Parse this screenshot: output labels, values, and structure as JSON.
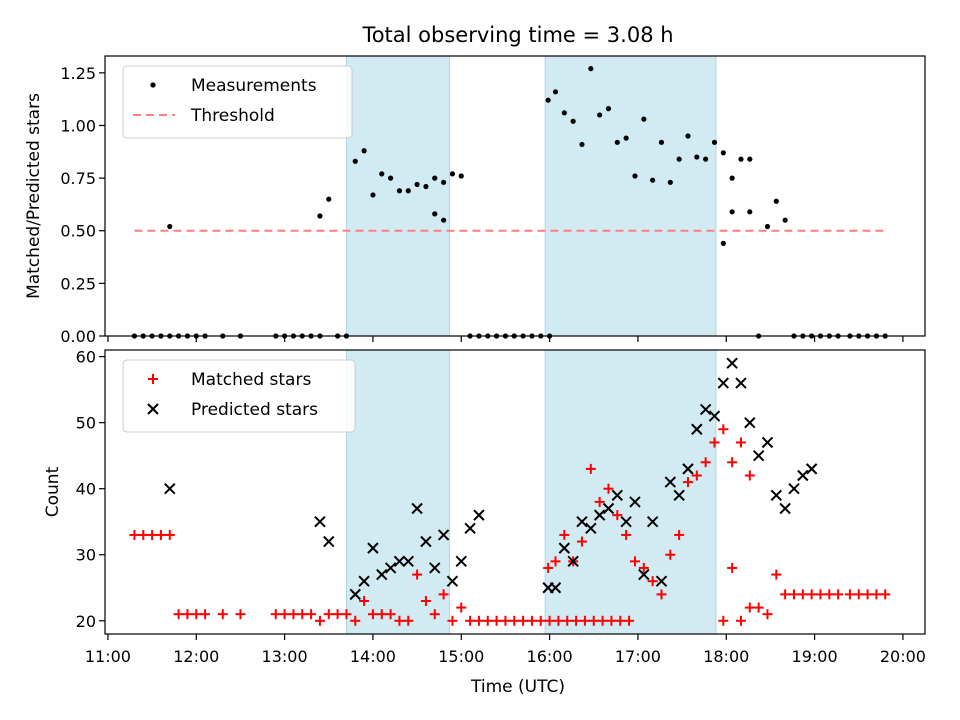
{
  "figure": {
    "title": "Total observing time = 3.08 h",
    "xlabel": "Time (UTC)",
    "x_ticks": [
      "11:00",
      "12:00",
      "13:00",
      "14:00",
      "15:00",
      "16:00",
      "17:00",
      "18:00",
      "19:00",
      "20:00"
    ]
  },
  "colors": {
    "measurement": "#000000",
    "threshold": "#ff7f7f",
    "matched": "#ff0000",
    "predicted": "#000000",
    "shade": "#add8e6"
  },
  "chart_data": [
    {
      "type": "scatter",
      "panel": "top",
      "title": "Total observing time = 3.08 h",
      "ylabel": "Matched/Predicted stars",
      "xlabel": "",
      "xlim": [
        "10:58",
        "20:15"
      ],
      "ylim": [
        0,
        1.33
      ],
      "y_ticks": [
        "0.00",
        "0.25",
        "0.50",
        "0.75",
        "1.00",
        "1.25"
      ],
      "legend": "top-left",
      "shaded_intervals": [
        [
          "13:42",
          "14:52"
        ],
        [
          "15:57",
          "17:53"
        ]
      ],
      "threshold": {
        "name": "Threshold",
        "value": 0.5,
        "x_range": [
          "11:18",
          "19:48"
        ]
      },
      "series": [
        {
          "name": "Measurements",
          "marker": "dot",
          "points": [
            [
              "11:18",
              0
            ],
            [
              "11:24",
              0
            ],
            [
              "11:30",
              0
            ],
            [
              "11:36",
              0
            ],
            [
              "11:42",
              0
            ],
            [
              "11:42",
              0.52
            ],
            [
              "11:48",
              0
            ],
            [
              "11:54",
              0
            ],
            [
              "12:00",
              0
            ],
            [
              "12:06",
              0
            ],
            [
              "12:18",
              0
            ],
            [
              "12:30",
              0
            ],
            [
              "12:54",
              0
            ],
            [
              "13:00",
              0
            ],
            [
              "13:06",
              0
            ],
            [
              "13:12",
              0
            ],
            [
              "13:18",
              0
            ],
            [
              "13:24",
              0
            ],
            [
              "13:24",
              0.57
            ],
            [
              "13:30",
              0.65
            ],
            [
              "13:36",
              0
            ],
            [
              "13:42",
              0
            ],
            [
              "13:48",
              0.83
            ],
            [
              "13:54",
              0.88
            ],
            [
              "14:00",
              0.67
            ],
            [
              "14:06",
              0.77
            ],
            [
              "14:12",
              0.75
            ],
            [
              "14:18",
              0.69
            ],
            [
              "14:24",
              0.69
            ],
            [
              "14:30",
              0.72
            ],
            [
              "14:36",
              0.71
            ],
            [
              "14:42",
              0.75
            ],
            [
              "14:48",
              0.73
            ],
            [
              "14:54",
              0.77
            ],
            [
              "15:00",
              0.76
            ],
            [
              "14:42",
              0.58
            ],
            [
              "14:48",
              0.55
            ],
            [
              "15:06",
              0
            ],
            [
              "15:12",
              0
            ],
            [
              "15:18",
              0
            ],
            [
              "15:24",
              0
            ],
            [
              "15:30",
              0
            ],
            [
              "15:36",
              0
            ],
            [
              "15:42",
              0
            ],
            [
              "15:48",
              0
            ],
            [
              "15:54",
              0
            ],
            [
              "16:00",
              0
            ],
            [
              "15:59",
              1.12
            ],
            [
              "16:04",
              1.16
            ],
            [
              "16:10",
              1.06
            ],
            [
              "16:16",
              1.02
            ],
            [
              "16:22",
              0.91
            ],
            [
              "16:28",
              1.27
            ],
            [
              "16:34",
              1.05
            ],
            [
              "16:40",
              1.08
            ],
            [
              "16:46",
              0.92
            ],
            [
              "16:52",
              0.94
            ],
            [
              "16:58",
              0.76
            ],
            [
              "17:04",
              1.03
            ],
            [
              "17:10",
              0.74
            ],
            [
              "17:16",
              0.92
            ],
            [
              "17:22",
              0.73
            ],
            [
              "17:28",
              0.84
            ],
            [
              "17:34",
              0.95
            ],
            [
              "17:40",
              0.85
            ],
            [
              "17:46",
              0.84
            ],
            [
              "17:52",
              0.92
            ],
            [
              "17:58",
              0.87
            ],
            [
              "18:04",
              0.75
            ],
            [
              "18:10",
              0.84
            ],
            [
              "18:16",
              0.84
            ],
            [
              "17:58",
              0.44
            ],
            [
              "18:04",
              0.59
            ],
            [
              "18:16",
              0.59
            ],
            [
              "18:22",
              0
            ],
            [
              "18:28",
              0.52
            ],
            [
              "18:34",
              0.64
            ],
            [
              "18:40",
              0.55
            ],
            [
              "18:46",
              0
            ],
            [
              "18:52",
              0
            ],
            [
              "18:58",
              0
            ],
            [
              "19:04",
              0
            ],
            [
              "19:10",
              0
            ],
            [
              "19:16",
              0
            ],
            [
              "19:24",
              0
            ],
            [
              "19:30",
              0
            ],
            [
              "19:36",
              0
            ],
            [
              "19:42",
              0
            ],
            [
              "19:48",
              0
            ]
          ]
        }
      ]
    },
    {
      "type": "scatter",
      "panel": "bottom",
      "title": "",
      "ylabel": "Count",
      "xlabel": "Time (UTC)",
      "xlim": [
        "10:58",
        "20:15"
      ],
      "ylim": [
        18,
        61
      ],
      "y_ticks": [
        "20",
        "30",
        "40",
        "50",
        "60"
      ],
      "legend": "top-left",
      "shaded_intervals": [
        [
          "13:42",
          "14:52"
        ],
        [
          "15:57",
          "17:53"
        ]
      ],
      "series": [
        {
          "name": "Matched stars",
          "marker": "plus",
          "points": [
            [
              "11:18",
              33
            ],
            [
              "11:24",
              33
            ],
            [
              "11:30",
              33
            ],
            [
              "11:36",
              33
            ],
            [
              "11:42",
              33
            ],
            [
              "11:48",
              21
            ],
            [
              "11:54",
              21
            ],
            [
              "12:00",
              21
            ],
            [
              "12:06",
              21
            ],
            [
              "12:18",
              21
            ],
            [
              "12:30",
              21
            ],
            [
              "12:54",
              21
            ],
            [
              "13:00",
              21
            ],
            [
              "13:06",
              21
            ],
            [
              "13:12",
              21
            ],
            [
              "13:18",
              21
            ],
            [
              "13:24",
              20
            ],
            [
              "13:30",
              21
            ],
            [
              "13:36",
              21
            ],
            [
              "13:42",
              21
            ],
            [
              "13:48",
              20
            ],
            [
              "13:54",
              23
            ],
            [
              "14:00",
              21
            ],
            [
              "14:06",
              21
            ],
            [
              "14:12",
              21
            ],
            [
              "14:18",
              20
            ],
            [
              "14:24",
              20
            ],
            [
              "14:30",
              27
            ],
            [
              "14:36",
              23
            ],
            [
              "14:42",
              21
            ],
            [
              "14:48",
              24
            ],
            [
              "14:54",
              20
            ],
            [
              "15:00",
              22
            ],
            [
              "15:06",
              20
            ],
            [
              "15:12",
              20
            ],
            [
              "15:18",
              20
            ],
            [
              "15:24",
              20
            ],
            [
              "15:30",
              20
            ],
            [
              "15:36",
              20
            ],
            [
              "15:42",
              20
            ],
            [
              "15:48",
              20
            ],
            [
              "15:54",
              20
            ],
            [
              "16:00",
              20
            ],
            [
              "16:06",
              20
            ],
            [
              "16:12",
              20
            ],
            [
              "16:18",
              20
            ],
            [
              "16:24",
              20
            ],
            [
              "16:30",
              20
            ],
            [
              "16:36",
              20
            ],
            [
              "16:42",
              20
            ],
            [
              "16:48",
              20
            ],
            [
              "16:54",
              20
            ],
            [
              "15:59",
              28
            ],
            [
              "16:04",
              29
            ],
            [
              "16:10",
              33
            ],
            [
              "16:16",
              29
            ],
            [
              "16:22",
              32
            ],
            [
              "16:28",
              43
            ],
            [
              "16:34",
              38
            ],
            [
              "16:40",
              40
            ],
            [
              "16:46",
              36
            ],
            [
              "16:52",
              33
            ],
            [
              "16:58",
              29
            ],
            [
              "17:04",
              28
            ],
            [
              "17:10",
              26
            ],
            [
              "17:16",
              24
            ],
            [
              "17:22",
              30
            ],
            [
              "17:28",
              33
            ],
            [
              "17:34",
              41
            ],
            [
              "17:40",
              42
            ],
            [
              "17:46",
              44
            ],
            [
              "17:52",
              47
            ],
            [
              "17:58",
              49
            ],
            [
              "18:04",
              44
            ],
            [
              "18:10",
              47
            ],
            [
              "18:16",
              42
            ],
            [
              "17:58",
              20
            ],
            [
              "18:04",
              28
            ],
            [
              "18:10",
              20
            ],
            [
              "18:16",
              22
            ],
            [
              "18:22",
              22
            ],
            [
              "18:28",
              21
            ],
            [
              "18:34",
              27
            ],
            [
              "18:40",
              24
            ],
            [
              "18:46",
              24
            ],
            [
              "18:52",
              24
            ],
            [
              "18:58",
              24
            ],
            [
              "19:04",
              24
            ],
            [
              "19:10",
              24
            ],
            [
              "19:16",
              24
            ],
            [
              "19:24",
              24
            ],
            [
              "19:30",
              24
            ],
            [
              "19:36",
              24
            ],
            [
              "19:42",
              24
            ],
            [
              "19:48",
              24
            ]
          ]
        },
        {
          "name": "Predicted stars",
          "marker": "cross",
          "points": [
            [
              "11:42",
              40
            ],
            [
              "13:24",
              35
            ],
            [
              "13:30",
              32
            ],
            [
              "13:48",
              24
            ],
            [
              "13:54",
              26
            ],
            [
              "14:00",
              31
            ],
            [
              "14:06",
              27
            ],
            [
              "14:12",
              28
            ],
            [
              "14:18",
              29
            ],
            [
              "14:24",
              29
            ],
            [
              "14:30",
              37
            ],
            [
              "14:36",
              32
            ],
            [
              "14:42",
              28
            ],
            [
              "14:48",
              33
            ],
            [
              "14:54",
              26
            ],
            [
              "15:00",
              29
            ],
            [
              "15:06",
              34
            ],
            [
              "15:12",
              36
            ],
            [
              "15:59",
              25
            ],
            [
              "16:04",
              25
            ],
            [
              "16:10",
              31
            ],
            [
              "16:16",
              29
            ],
            [
              "16:22",
              35
            ],
            [
              "16:28",
              34
            ],
            [
              "16:34",
              36
            ],
            [
              "16:40",
              37
            ],
            [
              "16:46",
              39
            ],
            [
              "16:52",
              35
            ],
            [
              "16:58",
              38
            ],
            [
              "17:04",
              27
            ],
            [
              "17:10",
              35
            ],
            [
              "17:16",
              26
            ],
            [
              "17:22",
              41
            ],
            [
              "17:28",
              39
            ],
            [
              "17:34",
              43
            ],
            [
              "17:40",
              49
            ],
            [
              "17:46",
              52
            ],
            [
              "17:52",
              51
            ],
            [
              "17:58",
              56
            ],
            [
              "18:04",
              59
            ],
            [
              "18:10",
              56
            ],
            [
              "18:16",
              50
            ],
            [
              "18:22",
              45
            ],
            [
              "18:28",
              47
            ],
            [
              "18:34",
              39
            ],
            [
              "18:40",
              37
            ],
            [
              "18:46",
              40
            ],
            [
              "18:52",
              42
            ],
            [
              "18:58",
              43
            ]
          ]
        }
      ]
    }
  ]
}
